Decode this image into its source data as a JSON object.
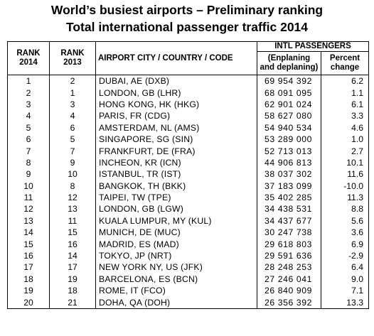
{
  "title_line1": "World’s busiest airports – Preliminary ranking",
  "title_line2": "Total international passenger traffic 2014",
  "headers": {
    "rank2014": [
      "RANK",
      "2014"
    ],
    "rank2013": [
      "RANK",
      "2013"
    ],
    "airport": "AIRPORT CITY / COUNTRY / CODE",
    "intl": "INTL PASSENGERS",
    "pax": [
      "(Enplaning",
      "and deplaning)"
    ],
    "change": [
      "Percent",
      "change"
    ]
  },
  "rows": [
    {
      "rank2014": "1",
      "rank2013": "2",
      "airport": "DUBAI, AE (DXB)",
      "passengers": "69 954 392",
      "change": "6.2"
    },
    {
      "rank2014": "2",
      "rank2013": "1",
      "airport": "LONDON, GB (LHR)",
      "passengers": "68 091 095",
      "change": "1.1"
    },
    {
      "rank2014": "3",
      "rank2013": "3",
      "airport": "HONG KONG, HK (HKG)",
      "passengers": "62 901 024",
      "change": "6.1"
    },
    {
      "rank2014": "4",
      "rank2013": "4",
      "airport": "PARIS, FR (CDG)",
      "passengers": "58 627 080",
      "change": "3.3"
    },
    {
      "rank2014": "5",
      "rank2013": "6",
      "airport": "AMSTERDAM, NL (AMS)",
      "passengers": "54 940 534",
      "change": "4.6"
    },
    {
      "rank2014": "6",
      "rank2013": "5",
      "airport": "SINGAPORE, SG (SIN)",
      "passengers": "53 289 000",
      "change": "1.0"
    },
    {
      "rank2014": "7",
      "rank2013": "7",
      "airport": "FRANKFURT, DE (FRA)",
      "passengers": "52 713 013",
      "change": "2.7"
    },
    {
      "rank2014": "8",
      "rank2013": "9",
      "airport": "INCHEON, KR (ICN)",
      "passengers": "44 906 813",
      "change": "10.1"
    },
    {
      "rank2014": "9",
      "rank2013": "10",
      "airport": "ISTANBUL, TR (IST)",
      "passengers": "38 037 302",
      "change": "11.6"
    },
    {
      "rank2014": "10",
      "rank2013": "8",
      "airport": "BANGKOK, TH (BKK)",
      "passengers": "37 183 099",
      "change": "-10.0"
    },
    {
      "rank2014": "11",
      "rank2013": "12",
      "airport": "TAIPEI, TW (TPE)",
      "passengers": "35 402 285",
      "change": "11.3"
    },
    {
      "rank2014": "12",
      "rank2013": "13",
      "airport": "LONDON, GB (LGW)",
      "passengers": "34 438 531",
      "change": "8.8"
    },
    {
      "rank2014": "13",
      "rank2013": "11",
      "airport": "KUALA LUMPUR, MY (KUL)",
      "passengers": "34 437 677",
      "change": "5.6"
    },
    {
      "rank2014": "14",
      "rank2013": "15",
      "airport": "MUNICH, DE (MUC)",
      "passengers": "30 247 738",
      "change": "3.6"
    },
    {
      "rank2014": "15",
      "rank2013": "16",
      "airport": "MADRID, ES (MAD)",
      "passengers": "29 618 803",
      "change": "6.9"
    },
    {
      "rank2014": "16",
      "rank2013": "14",
      "airport": "TOKYO, JP (NRT)",
      "passengers": "29 591 636",
      "change": "-2.9"
    },
    {
      "rank2014": "17",
      "rank2013": "17",
      "airport": "NEW YORK NY, US (JFK)",
      "passengers": "28 248 253",
      "change": "6.4"
    },
    {
      "rank2014": "18",
      "rank2013": "19",
      "airport": "BARCELONA, ES (BCN)",
      "passengers": "27 246 041",
      "change": "9.0"
    },
    {
      "rank2014": "19",
      "rank2013": "18",
      "airport": "ROME, IT (FCO)",
      "passengers": "26 840 909",
      "change": "7.1"
    },
    {
      "rank2014": "20",
      "rank2013": "21",
      "airport": "DOHA, QA (DOH)",
      "passengers": "26 356 392",
      "change": "13.3"
    }
  ]
}
